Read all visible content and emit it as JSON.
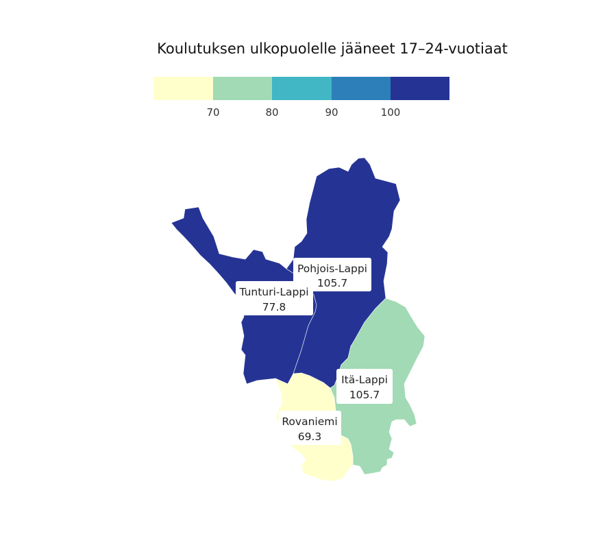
{
  "title": "Koulutuksen ulkopuolelle jääneet 17–24-vuotiaat",
  "legend": {
    "type": "stepped",
    "colors": [
      "#ffffcc",
      "#a1dab4",
      "#41b6c4",
      "#2c7fb8",
      "#253494"
    ],
    "ticks": [
      "70",
      "80",
      "90",
      "100"
    ]
  },
  "regions": [
    {
      "name": "Pohjois-Lappi",
      "value": "105.7",
      "color": "#253494"
    },
    {
      "name": "Itä-Lappi",
      "value": "105.7",
      "color": "#253494"
    },
    {
      "name": "Tunturi-Lappi",
      "value": "77.8",
      "color": "#a1dab4"
    },
    {
      "name": "Rovaniemi",
      "value": "69.3",
      "color": "#ffffcc"
    }
  ]
}
